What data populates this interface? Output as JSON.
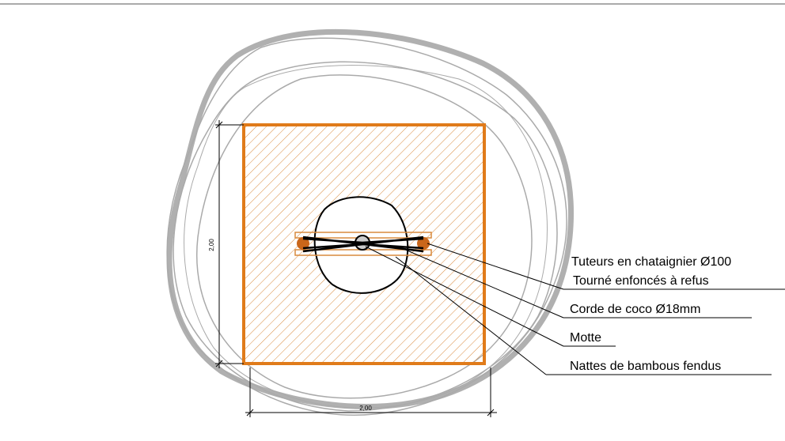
{
  "dimensions": {
    "height": "2,00",
    "width": "2,00"
  },
  "labels": [
    "Tuteurs en chataignier Ø100",
    "Tourné enfoncés à refus",
    "Corde de coco Ø18mm",
    "Motte",
    "Nattes de bambous fendus"
  ]
}
